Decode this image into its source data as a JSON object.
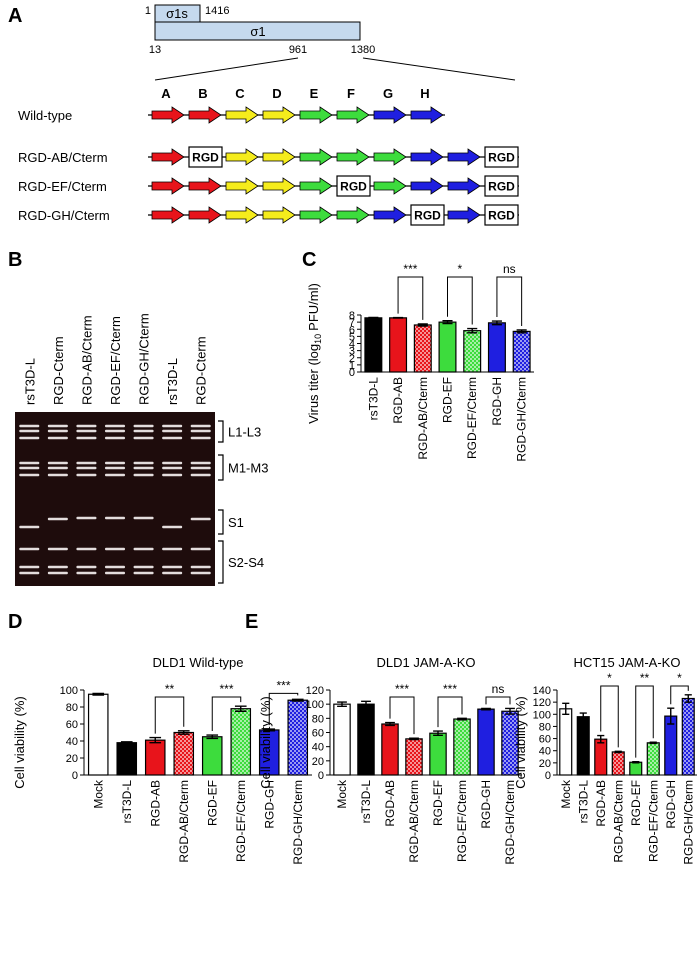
{
  "panel_a": {
    "panel": "A",
    "sigma1s": {
      "label": "σ1s",
      "start": 1,
      "end": 1416
    },
    "sigma1": {
      "label": "σ1",
      "start": 13,
      "mid": 961,
      "end": 1380
    },
    "letters": [
      "A",
      "B",
      "C",
      "D",
      "E",
      "F",
      "G",
      "H"
    ],
    "rows": [
      {
        "label": "Wild-type",
        "elements": [
          "#e8141b",
          "#e8141b",
          "#f5ec1c",
          "#f5ec1c",
          "#3ddc3d",
          "#3ddc3d",
          "#1f1fe0",
          "#1f1fe0"
        ]
      },
      {
        "label": "RGD-AB/Cterm",
        "elements": [
          "#e8141b",
          "RGD",
          "#f5ec1c",
          "#f5ec1c",
          "#3ddc3d",
          "#3ddc3d",
          "#3ddc3d",
          "#1f1fe0",
          "#1f1fe0",
          "RGD"
        ]
      },
      {
        "label": "RGD-EF/Cterm",
        "elements": [
          "#e8141b",
          "#e8141b",
          "#f5ec1c",
          "#f5ec1c",
          "#3ddc3d",
          "RGD",
          "#3ddc3d",
          "#1f1fe0",
          "#1f1fe0",
          "RGD"
        ]
      },
      {
        "label": "RGD-GH/Cterm",
        "elements": [
          "#e8141b",
          "#e8141b",
          "#f5ec1c",
          "#f5ec1c",
          "#3ddc3d",
          "#3ddc3d",
          "#1f1fe0",
          "RGD",
          "#1f1fe0",
          "RGD"
        ]
      }
    ]
  },
  "panel_b": {
    "panel": "B",
    "lanes": [
      "rsT3D-L",
      "RGD-Cterm",
      "RGD-AB/Cterm",
      "RGD-EF/Cterm",
      "RGD-GH/Cterm",
      "rsT3D-L",
      "RGD-Cterm"
    ],
    "bands": [
      "L1-L3",
      "M1-M3",
      "S1",
      "S2-S4"
    ]
  },
  "chart_data": [
    {
      "type": "bar",
      "panel": "C",
      "y_label": "Virus titer (log",
      "y_label_sub": "10",
      "y_label_end": "PFU/ml)",
      "categories": [
        "rsT3D-L",
        "RGD-AB",
        "RGD-AB/Cterm",
        "RGD-EF",
        "RGD-EF/Cterm",
        "RGD-GH",
        "RGD-GH/Cterm"
      ],
      "values": [
        7.6,
        7.6,
        6.6,
        7.0,
        5.8,
        6.9,
        5.7
      ],
      "errors": [
        0.05,
        0.03,
        0.15,
        0.2,
        0.3,
        0.25,
        0.2
      ],
      "colors": [
        "#000000",
        "#e8141b",
        "#e8141b",
        "#3ddc3d",
        "#3ddc3d",
        "#1f1fe0",
        "#1f1fe0"
      ],
      "fills": [
        "solid",
        "solid",
        "checkered",
        "solid",
        "checkered",
        "solid",
        "checkered"
      ],
      "ylim": [
        0,
        8
      ],
      "yticks": [
        0,
        1,
        2,
        3,
        4,
        5,
        6,
        7,
        8
      ],
      "comparisons": [
        {
          "groups": [
            "RGD-AB",
            "RGD-AB/Cterm"
          ],
          "label": "***"
        },
        {
          "groups": [
            "RGD-EF",
            "RGD-EF/Cterm"
          ],
          "label": "*"
        },
        {
          "groups": [
            "RGD-GH",
            "RGD-GH/Cterm"
          ],
          "label": "ns"
        }
      ]
    },
    {
      "type": "bar",
      "panel": "D",
      "title": "DLD1 Wild-type",
      "y_label": "Cell viability (%)",
      "categories": [
        "Mock",
        "rsT3D-L",
        "RGD-AB",
        "RGD-AB/Cterm",
        "RGD-EF",
        "RGD-EF/Cterm",
        "RGD-GH",
        "RGD-GH/Cterm"
      ],
      "values": [
        95,
        38,
        41,
        50,
        45,
        78,
        53,
        88
      ],
      "errors": [
        1,
        1,
        3,
        2,
        2,
        3,
        1,
        1
      ],
      "colors": [
        "#ffffff",
        "#000000",
        "#e8141b",
        "#e8141b",
        "#3ddc3d",
        "#3ddc3d",
        "#1f1fe0",
        "#1f1fe0"
      ],
      "fills": [
        "solid",
        "solid",
        "solid",
        "checkered",
        "solid",
        "checkered",
        "solid",
        "checkered"
      ],
      "ylim": [
        0,
        100
      ],
      "yticks": [
        0,
        20,
        40,
        60,
        80,
        100
      ],
      "comparisons": [
        {
          "groups": [
            "RGD-AB",
            "RGD-AB/Cterm"
          ],
          "label": "**"
        },
        {
          "groups": [
            "RGD-EF",
            "RGD-EF/Cterm"
          ],
          "label": "***"
        },
        {
          "groups": [
            "RGD-GH",
            "RGD-GH/Cterm"
          ],
          "label": "***"
        }
      ]
    },
    {
      "type": "bar",
      "panel": "E",
      "title": "DLD1 JAM-A-KO",
      "y_label": "Cell viability (%)",
      "categories": [
        "Mock",
        "rsT3D-L",
        "RGD-AB",
        "RGD-AB/Cterm",
        "RGD-EF",
        "RGD-EF/Cterm",
        "RGD-GH",
        "RGD-GH/Cterm"
      ],
      "values": [
        100,
        100,
        72,
        51,
        59,
        79,
        93,
        90
      ],
      "errors": [
        3,
        4,
        2,
        1,
        3,
        1,
        1,
        4
      ],
      "colors": [
        "#ffffff",
        "#000000",
        "#e8141b",
        "#e8141b",
        "#3ddc3d",
        "#3ddc3d",
        "#1f1fe0",
        "#1f1fe0"
      ],
      "fills": [
        "solid",
        "solid",
        "solid",
        "checkered",
        "solid",
        "checkered",
        "solid",
        "checkered"
      ],
      "ylim": [
        0,
        120
      ],
      "yticks": [
        0,
        20,
        40,
        60,
        80,
        100,
        120
      ],
      "comparisons": [
        {
          "groups": [
            "RGD-AB",
            "RGD-AB/Cterm"
          ],
          "label": "***"
        },
        {
          "groups": [
            "RGD-EF",
            "RGD-EF/Cterm"
          ],
          "label": "***"
        },
        {
          "groups": [
            "RGD-GH",
            "RGD-GH/Cterm"
          ],
          "label": "ns"
        }
      ]
    },
    {
      "type": "bar",
      "title": "HCT15 JAM-A-KO",
      "y_label": "Cell viability (%)",
      "categories": [
        "Mock",
        "rsT3D-L",
        "RGD-AB",
        "RGD-AB/Cterm",
        "RGD-EF",
        "RGD-EF/Cterm",
        "RGD-GH",
        "RGD-GH/Cterm"
      ],
      "values": [
        109,
        96,
        59,
        38,
        21,
        53,
        97,
        126
      ],
      "errors": [
        9,
        6,
        6,
        1,
        1,
        1,
        13,
        6
      ],
      "colors": [
        "#ffffff",
        "#000000",
        "#e8141b",
        "#e8141b",
        "#3ddc3d",
        "#3ddc3d",
        "#1f1fe0",
        "#1f1fe0"
      ],
      "fills": [
        "solid",
        "solid",
        "solid",
        "checkered",
        "solid",
        "checkered",
        "solid",
        "checkered"
      ],
      "ylim": [
        0,
        140
      ],
      "yticks": [
        0,
        20,
        40,
        60,
        80,
        100,
        120,
        140
      ],
      "comparisons": [
        {
          "groups": [
            "RGD-AB",
            "RGD-AB/Cterm"
          ],
          "label": "*"
        },
        {
          "groups": [
            "RGD-EF",
            "RGD-EF/Cterm"
          ],
          "label": "**"
        },
        {
          "groups": [
            "RGD-GH",
            "RGD-GH/Cterm"
          ],
          "label": "*"
        }
      ]
    }
  ]
}
